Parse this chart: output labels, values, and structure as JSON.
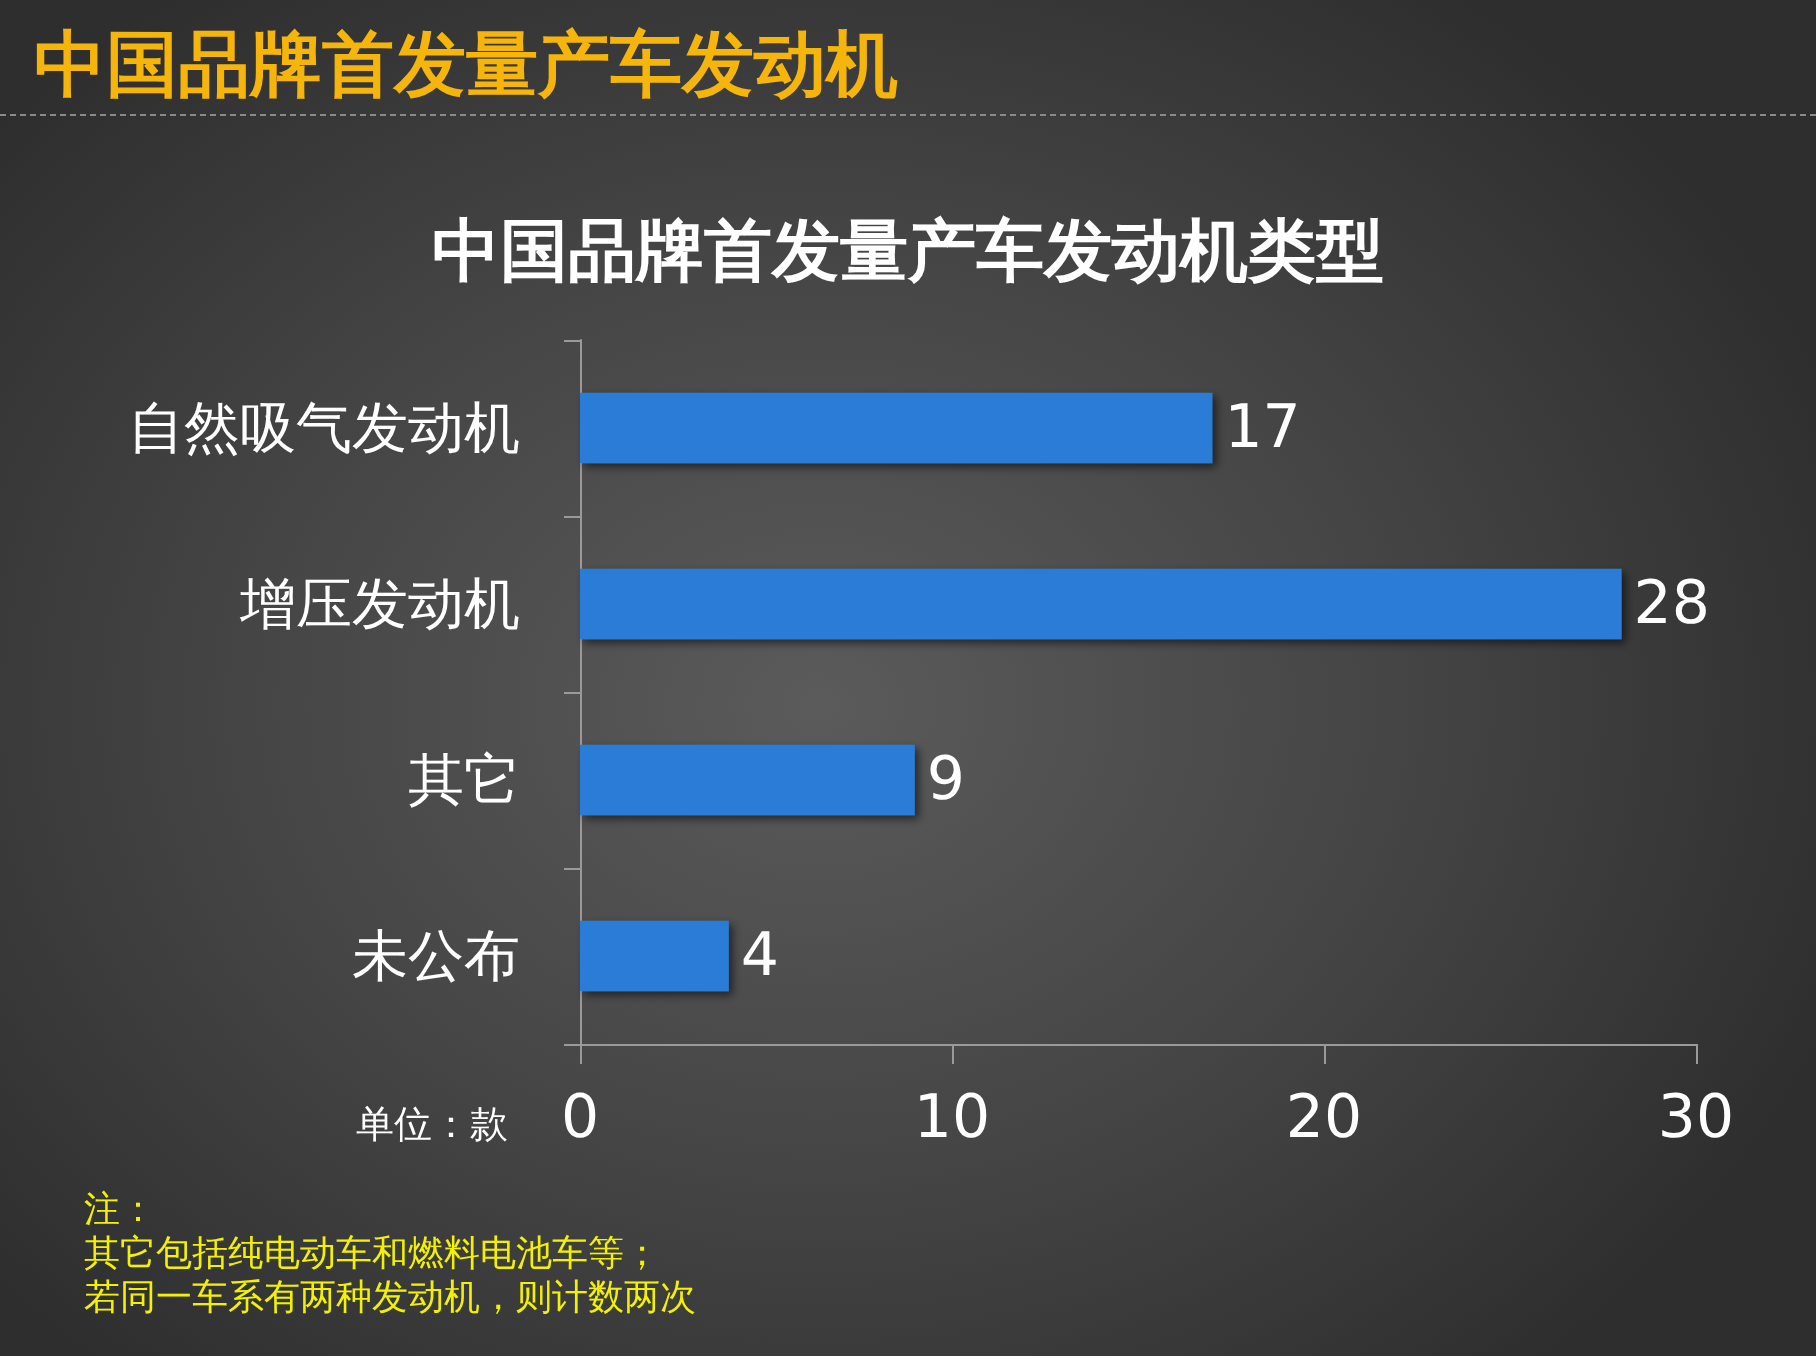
{
  "chart_data": {
    "type": "bar",
    "orientation": "horizontal",
    "title": "中国品牌首发量产车发动机",
    "subtitle": "中国品牌首发量产车发动机类型",
    "xlabel": "单位：款",
    "categories": [
      "自然吸气发动机",
      "增压发动机",
      "其它",
      "未公布"
    ],
    "values": [
      17,
      28,
      9,
      4
    ],
    "color": "#2b7bd6",
    "xlim": [
      0,
      30
    ],
    "xticks": [
      0,
      10,
      20,
      30
    ],
    "data_labels": true,
    "grid": false,
    "annotations": [
      "注：",
      "其它包括纯电动车和燃料电池车等；",
      "若同一车系有两种发动机，则计数两次"
    ]
  }
}
